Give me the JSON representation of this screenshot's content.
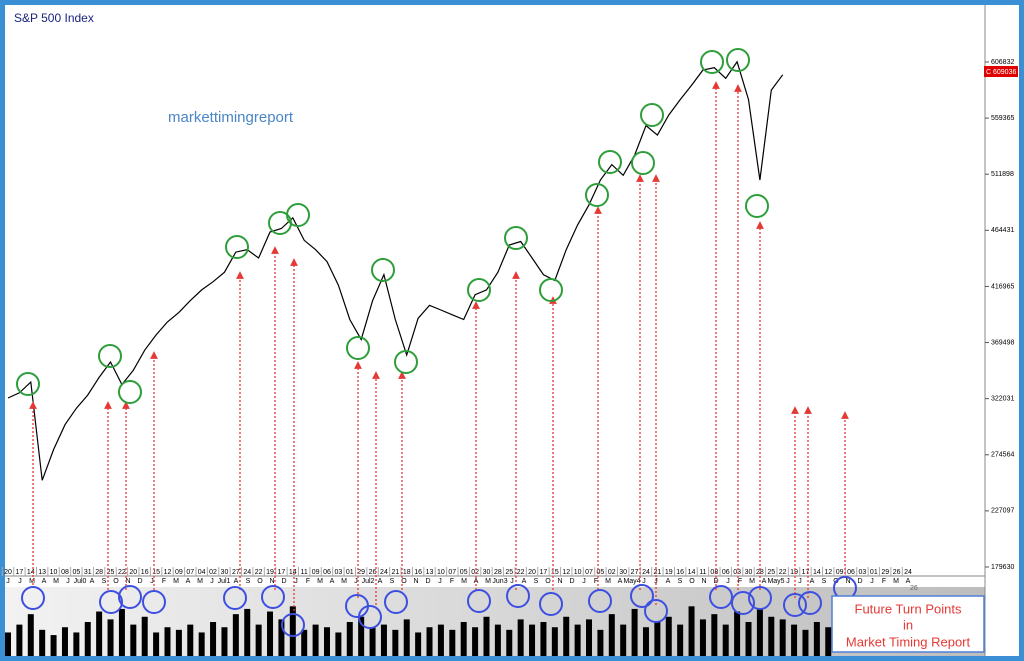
{
  "chart_data": [
    {
      "type": "line",
      "title": "S&P 500 Index",
      "annotations": [
        "markettimingreport",
        "C 609036",
        "Future Turn Points",
        "in",
        "Market Timing Report"
      ],
      "categories": [
        "20",
        "17",
        "14",
        "13",
        "10",
        "08",
        "05",
        "31",
        "28",
        "25",
        "22",
        "20",
        "16",
        "15",
        "12",
        "09",
        "07",
        "04",
        "02",
        "30",
        "27",
        "24",
        "22",
        "19",
        "17",
        "14",
        "11",
        "09",
        "06",
        "03",
        "01",
        "29",
        "26",
        "24",
        "21",
        "18",
        "16",
        "13",
        "10",
        "07",
        "05",
        "02",
        "30",
        "28",
        "25",
        "22",
        "20",
        "17",
        "15",
        "12",
        "10",
        "07",
        "05",
        "02",
        "30",
        "27",
        "24",
        "21",
        "19",
        "16",
        "14",
        "11",
        "08",
        "06",
        "03",
        "30",
        "28",
        "25",
        "22",
        "19",
        "17",
        "14",
        "12",
        "09",
        "06",
        "03",
        "01",
        "29",
        "26",
        "24"
      ],
      "x_periods": [
        "J",
        "J",
        "M",
        "A",
        "M",
        "J",
        "Jul0",
        "A",
        "S",
        "O",
        "N",
        "D",
        "J",
        "F",
        "M",
        "A",
        "M",
        "J",
        "Jul1",
        "A",
        "S",
        "O",
        "N",
        "D",
        "J",
        "F",
        "M",
        "A",
        "M",
        "J",
        "Jul2",
        "A",
        "S",
        "O",
        "N",
        "D",
        "J",
        "F",
        "M",
        "A",
        "M",
        "Jun3",
        "J",
        "A",
        "S",
        "O",
        "N",
        "D",
        "J",
        "F",
        "M",
        "A",
        "May4",
        "J",
        "J",
        "A",
        "S",
        "O",
        "N",
        "D",
        "J",
        "F",
        "M",
        "A",
        "May5",
        "J",
        "J",
        "A",
        "S",
        "O",
        "N",
        "D",
        "J",
        "F",
        "M",
        "A"
      ],
      "series": [
        {
          "color": "#000000",
          "values": [
            322600,
            327000,
            336000,
            253000,
            279000,
            300000,
            314000,
            325000,
            340000,
            353000,
            334000,
            346000,
            363000,
            376000,
            387000,
            395000,
            405000,
            414000,
            421000,
            429000,
            446000,
            448000,
            441000,
            463000,
            466000,
            475000,
            456000,
            448000,
            438000,
            418000,
            389000,
            372000,
            405000,
            427000,
            389000,
            359000,
            390000,
            401000,
            397000,
            393000,
            389000,
            410000,
            414000,
            429000,
            452000,
            455000,
            441000,
            427000,
            422000,
            448000,
            469000,
            486000,
            507000,
            520000,
            511000,
            528000,
            553000,
            545000,
            562000,
            575000,
            587000,
            600000,
            602000,
            593000,
            607000,
            575000,
            507000,
            583000,
            596000,
            null,
            null,
            null,
            null,
            null,
            null,
            null,
            null,
            null,
            null,
            null
          ]
        }
      ],
      "ylim": [
        179630,
        655026
      ],
      "yticks": [
        606832,
        559365,
        511898,
        464431,
        416965,
        369498,
        322031,
        274564,
        227097,
        179630
      ]
    },
    {
      "type": "bar",
      "color": "#000000",
      "values": [
        9,
        12,
        16,
        10,
        8,
        11,
        9,
        13,
        17,
        14,
        18,
        12,
        15,
        9,
        11,
        10,
        12,
        9,
        13,
        11,
        16,
        18,
        12,
        17,
        14,
        19,
        10,
        12,
        11,
        9,
        13,
        15,
        11,
        12,
        10,
        14,
        9,
        11,
        12,
        10,
        13,
        11,
        15,
        12,
        10,
        14,
        12,
        13,
        11,
        15,
        12,
        14,
        10,
        16,
        12,
        18,
        11,
        13,
        15,
        12,
        19,
        14,
        16,
        12,
        17,
        13,
        18,
        15,
        14,
        12,
        10,
        13,
        11,
        null,
        null,
        null,
        null,
        null,
        null,
        null
      ],
      "ylim": [
        0,
        26
      ],
      "yticks": [
        26
      ]
    }
  ]
}
